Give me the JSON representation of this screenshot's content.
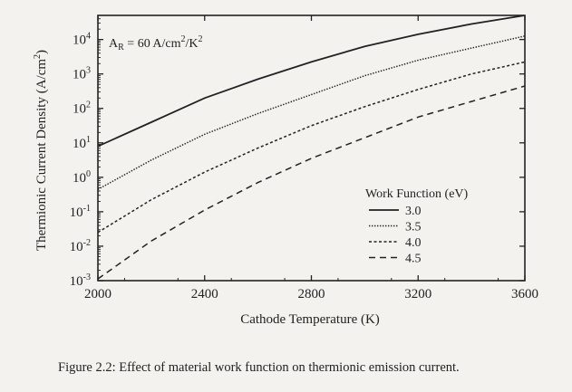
{
  "caption": "Figure 2.2: Effect of material work function on thermionic emission current.",
  "chart_data": {
    "type": "line",
    "xlabel": "Cathode Temperature (K)",
    "ylabel": "Thermionic Current Density (A/cm²)",
    "annotation": "A_R = 60 A/cm²/K²",
    "x_ticks": [
      "2000",
      "2400",
      "2800",
      "3200",
      "3600"
    ],
    "y_ticks": [
      "10^-3",
      "10^-2",
      "10^-1",
      "10^0",
      "10^1",
      "10^2",
      "10^3",
      "10^4"
    ],
    "xlim": [
      2000,
      3600
    ],
    "ylim_log10": [
      -3,
      4.7
    ],
    "y_scale": "log",
    "grid": false,
    "legend_title": "Work Function (eV)",
    "legend_position": "lower-right",
    "x": [
      2000,
      2200,
      2400,
      2600,
      2800,
      3000,
      3200,
      3400,
      3600
    ],
    "series": [
      {
        "name": "3.0",
        "style": "solid",
        "log10_values": [
          0.9,
          1.6,
          2.3,
          2.85,
          3.35,
          3.8,
          4.15,
          4.45,
          4.7
        ]
      },
      {
        "name": "3.5",
        "style": "dotted",
        "log10_values": [
          -0.35,
          0.5,
          1.25,
          1.85,
          2.4,
          2.95,
          3.4,
          3.75,
          4.1
        ]
      },
      {
        "name": "4.0",
        "style": "short-dash",
        "log10_values": [
          -1.6,
          -0.65,
          0.15,
          0.85,
          1.5,
          2.05,
          2.55,
          3.0,
          3.35
        ]
      },
      {
        "name": "4.5",
        "style": "long-dash",
        "log10_values": [
          -2.95,
          -1.85,
          -0.95,
          -0.15,
          0.55,
          1.15,
          1.75,
          2.2,
          2.65
        ]
      }
    ]
  }
}
